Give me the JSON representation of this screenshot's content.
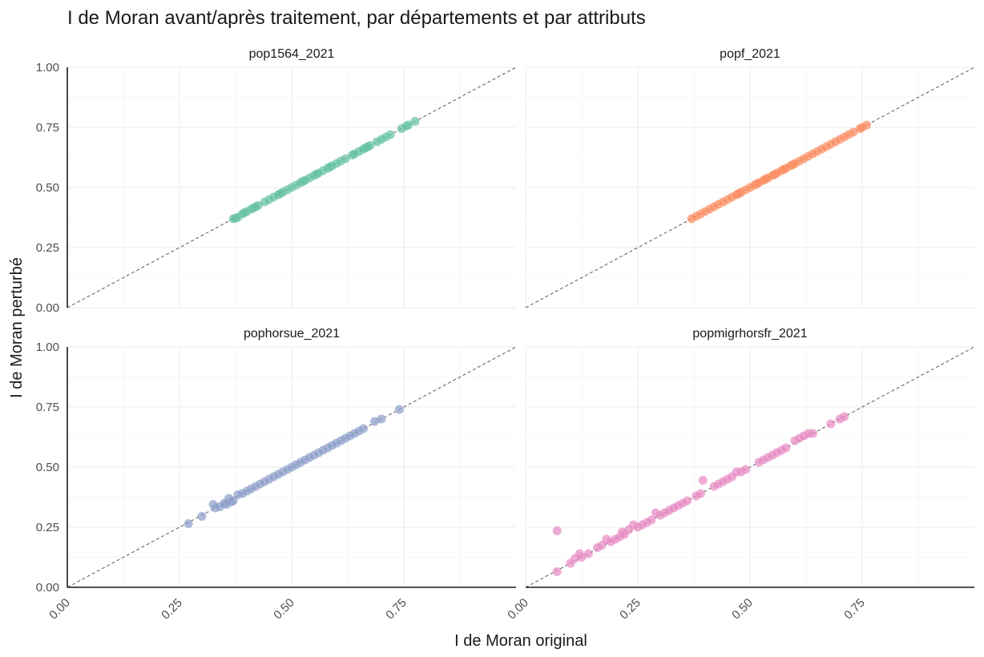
{
  "chart_data": {
    "type": "scatter",
    "title": "I de Moran avant/après traitement, par départements et par attributs",
    "xlabel": "I de Moran original",
    "ylabel": "I de Moran perturbé",
    "xlim": [
      0,
      1
    ],
    "ylim": [
      0,
      1
    ],
    "x_ticks": [
      "0.00",
      "0.25",
      "0.50",
      "0.75"
    ],
    "y_ticks": [
      "0.00",
      "0.25",
      "0.50",
      "0.75",
      "1.00"
    ],
    "reference_line": "y = x",
    "panels": [
      {
        "name": "pop1564_2021",
        "color": "#66c2a5",
        "points": [
          [
            0.37,
            0.37
          ],
          [
            0.375,
            0.372
          ],
          [
            0.38,
            0.376
          ],
          [
            0.39,
            0.39
          ],
          [
            0.395,
            0.395
          ],
          [
            0.4,
            0.4
          ],
          [
            0.41,
            0.41
          ],
          [
            0.415,
            0.415
          ],
          [
            0.42,
            0.42
          ],
          [
            0.425,
            0.425
          ],
          [
            0.44,
            0.44
          ],
          [
            0.45,
            0.45
          ],
          [
            0.46,
            0.46
          ],
          [
            0.47,
            0.47
          ],
          [
            0.475,
            0.475
          ],
          [
            0.48,
            0.48
          ],
          [
            0.49,
            0.49
          ],
          [
            0.5,
            0.5
          ],
          [
            0.51,
            0.51
          ],
          [
            0.52,
            0.52
          ],
          [
            0.525,
            0.525
          ],
          [
            0.53,
            0.53
          ],
          [
            0.54,
            0.54
          ],
          [
            0.55,
            0.55
          ],
          [
            0.555,
            0.555
          ],
          [
            0.56,
            0.56
          ],
          [
            0.57,
            0.57
          ],
          [
            0.58,
            0.58
          ],
          [
            0.585,
            0.585
          ],
          [
            0.59,
            0.59
          ],
          [
            0.6,
            0.6
          ],
          [
            0.61,
            0.61
          ],
          [
            0.62,
            0.62
          ],
          [
            0.635,
            0.635
          ],
          [
            0.64,
            0.64
          ],
          [
            0.65,
            0.65
          ],
          [
            0.66,
            0.66
          ],
          [
            0.665,
            0.665
          ],
          [
            0.67,
            0.67
          ],
          [
            0.675,
            0.675
          ],
          [
            0.69,
            0.69
          ],
          [
            0.7,
            0.7
          ],
          [
            0.71,
            0.71
          ],
          [
            0.72,
            0.72
          ],
          [
            0.745,
            0.745
          ],
          [
            0.755,
            0.755
          ],
          [
            0.76,
            0.76
          ],
          [
            0.775,
            0.775
          ]
        ]
      },
      {
        "name": "popf_2021",
        "color": "#fc8d62",
        "points": [
          [
            0.37,
            0.37
          ],
          [
            0.38,
            0.38
          ],
          [
            0.39,
            0.39
          ],
          [
            0.4,
            0.4
          ],
          [
            0.41,
            0.41
          ],
          [
            0.42,
            0.42
          ],
          [
            0.43,
            0.43
          ],
          [
            0.44,
            0.44
          ],
          [
            0.45,
            0.45
          ],
          [
            0.46,
            0.46
          ],
          [
            0.47,
            0.47
          ],
          [
            0.475,
            0.475
          ],
          [
            0.48,
            0.48
          ],
          [
            0.49,
            0.49
          ],
          [
            0.5,
            0.5
          ],
          [
            0.51,
            0.51
          ],
          [
            0.515,
            0.515
          ],
          [
            0.52,
            0.52
          ],
          [
            0.53,
            0.53
          ],
          [
            0.535,
            0.535
          ],
          [
            0.54,
            0.54
          ],
          [
            0.55,
            0.55
          ],
          [
            0.555,
            0.555
          ],
          [
            0.56,
            0.56
          ],
          [
            0.57,
            0.57
          ],
          [
            0.575,
            0.575
          ],
          [
            0.58,
            0.58
          ],
          [
            0.59,
            0.59
          ],
          [
            0.595,
            0.595
          ],
          [
            0.6,
            0.6
          ],
          [
            0.61,
            0.61
          ],
          [
            0.62,
            0.62
          ],
          [
            0.63,
            0.63
          ],
          [
            0.64,
            0.64
          ],
          [
            0.65,
            0.65
          ],
          [
            0.66,
            0.66
          ],
          [
            0.67,
            0.67
          ],
          [
            0.68,
            0.68
          ],
          [
            0.69,
            0.69
          ],
          [
            0.7,
            0.7
          ],
          [
            0.71,
            0.71
          ],
          [
            0.72,
            0.72
          ],
          [
            0.73,
            0.73
          ],
          [
            0.745,
            0.745
          ],
          [
            0.75,
            0.75
          ],
          [
            0.76,
            0.76
          ]
        ]
      },
      {
        "name": "pophorsue_2021",
        "color": "#8da0cb",
        "points": [
          [
            0.27,
            0.265
          ],
          [
            0.3,
            0.295
          ],
          [
            0.325,
            0.345
          ],
          [
            0.33,
            0.33
          ],
          [
            0.34,
            0.335
          ],
          [
            0.35,
            0.35
          ],
          [
            0.355,
            0.345
          ],
          [
            0.36,
            0.37
          ],
          [
            0.365,
            0.355
          ],
          [
            0.37,
            0.36
          ],
          [
            0.38,
            0.385
          ],
          [
            0.39,
            0.39
          ],
          [
            0.4,
            0.4
          ],
          [
            0.41,
            0.41
          ],
          [
            0.42,
            0.42
          ],
          [
            0.43,
            0.43
          ],
          [
            0.44,
            0.44
          ],
          [
            0.45,
            0.45
          ],
          [
            0.46,
            0.46
          ],
          [
            0.47,
            0.47
          ],
          [
            0.48,
            0.48
          ],
          [
            0.49,
            0.49
          ],
          [
            0.5,
            0.5
          ],
          [
            0.51,
            0.51
          ],
          [
            0.52,
            0.52
          ],
          [
            0.53,
            0.53
          ],
          [
            0.54,
            0.54
          ],
          [
            0.55,
            0.55
          ],
          [
            0.56,
            0.56
          ],
          [
            0.57,
            0.57
          ],
          [
            0.58,
            0.58
          ],
          [
            0.59,
            0.59
          ],
          [
            0.6,
            0.6
          ],
          [
            0.61,
            0.61
          ],
          [
            0.62,
            0.62
          ],
          [
            0.63,
            0.63
          ],
          [
            0.64,
            0.64
          ],
          [
            0.65,
            0.65
          ],
          [
            0.66,
            0.66
          ],
          [
            0.685,
            0.69
          ],
          [
            0.7,
            0.7
          ],
          [
            0.74,
            0.74
          ]
        ]
      },
      {
        "name": "popmigrhorsfr_2021",
        "color": "#e78ac3",
        "points": [
          [
            0.07,
            0.065
          ],
          [
            0.07,
            0.235
          ],
          [
            0.1,
            0.1
          ],
          [
            0.11,
            0.12
          ],
          [
            0.12,
            0.14
          ],
          [
            0.125,
            0.125
          ],
          [
            0.14,
            0.14
          ],
          [
            0.16,
            0.165
          ],
          [
            0.17,
            0.175
          ],
          [
            0.18,
            0.2
          ],
          [
            0.19,
            0.19
          ],
          [
            0.2,
            0.2
          ],
          [
            0.21,
            0.21
          ],
          [
            0.215,
            0.23
          ],
          [
            0.22,
            0.22
          ],
          [
            0.23,
            0.24
          ],
          [
            0.24,
            0.26
          ],
          [
            0.25,
            0.25
          ],
          [
            0.26,
            0.26
          ],
          [
            0.27,
            0.27
          ],
          [
            0.28,
            0.28
          ],
          [
            0.29,
            0.31
          ],
          [
            0.3,
            0.3
          ],
          [
            0.31,
            0.31
          ],
          [
            0.32,
            0.32
          ],
          [
            0.33,
            0.33
          ],
          [
            0.34,
            0.34
          ],
          [
            0.35,
            0.35
          ],
          [
            0.36,
            0.36
          ],
          [
            0.38,
            0.38
          ],
          [
            0.39,
            0.39
          ],
          [
            0.395,
            0.445
          ],
          [
            0.42,
            0.42
          ],
          [
            0.43,
            0.43
          ],
          [
            0.44,
            0.44
          ],
          [
            0.45,
            0.45
          ],
          [
            0.46,
            0.46
          ],
          [
            0.47,
            0.48
          ],
          [
            0.48,
            0.48
          ],
          [
            0.49,
            0.49
          ],
          [
            0.52,
            0.52
          ],
          [
            0.53,
            0.53
          ],
          [
            0.54,
            0.54
          ],
          [
            0.55,
            0.55
          ],
          [
            0.56,
            0.56
          ],
          [
            0.57,
            0.57
          ],
          [
            0.58,
            0.58
          ],
          [
            0.6,
            0.61
          ],
          [
            0.61,
            0.62
          ],
          [
            0.62,
            0.63
          ],
          [
            0.63,
            0.64
          ],
          [
            0.64,
            0.64
          ],
          [
            0.68,
            0.68
          ],
          [
            0.7,
            0.7
          ],
          [
            0.71,
            0.71
          ]
        ]
      }
    ]
  }
}
